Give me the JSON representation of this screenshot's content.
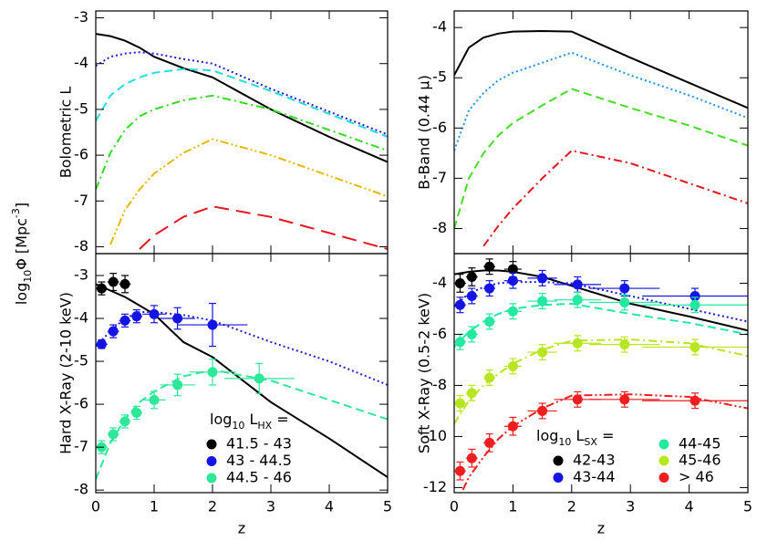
{
  "y_label": [
    {
      "text": "log"
    },
    {
      "text": "10",
      "shift": "sub"
    },
    {
      "text": "Φ  [Mpc"
    },
    {
      "text": "-3",
      "shift": "super"
    },
    {
      "text": "]"
    }
  ],
  "chart_data": [
    {
      "type": "line",
      "ylabel": "Bolometric L",
      "xlim": [
        0,
        5
      ],
      "xticks": [
        0,
        1,
        2,
        3,
        4,
        5
      ],
      "ylim": [
        -8.15,
        -2.85
      ],
      "yticks": [
        -3,
        -4,
        -5,
        -6,
        -7,
        -8
      ],
      "x": [
        0,
        0.25,
        0.5,
        0.75,
        1,
        1.5,
        2,
        3,
        4,
        5
      ],
      "series": [
        {
          "color": "#000000",
          "dash": "solid",
          "values": [
            -3.35,
            -3.4,
            -3.5,
            -3.65,
            -3.85,
            -4.1,
            -4.3,
            -5.0,
            -5.6,
            -6.15
          ]
        },
        {
          "color": "#1e1ee0",
          "dash": "dotted",
          "values": [
            -4.05,
            -3.85,
            -3.78,
            -3.75,
            -3.78,
            -3.9,
            -4.0,
            -4.55,
            -5.05,
            -5.55
          ]
        },
        {
          "color": "#22dde0",
          "dash": "dashed",
          "values": [
            -5.25,
            -4.7,
            -4.45,
            -4.3,
            -4.2,
            -4.12,
            -4.15,
            -4.6,
            -5.1,
            -5.6
          ]
        },
        {
          "color": "#33dd22",
          "dash": "dashdot",
          "values": [
            -6.75,
            -5.95,
            -5.45,
            -5.15,
            -5.0,
            -4.8,
            -4.7,
            -5.0,
            -5.45,
            -5.9
          ]
        },
        {
          "color": "#e6b800",
          "dash": "dashdotdot",
          "values": [
            null,
            -7.95,
            -7.2,
            -6.75,
            -6.4,
            -5.95,
            -5.65,
            -6.0,
            -6.45,
            -6.9
          ]
        },
        {
          "color": "#e6141e",
          "dash": "longdash",
          "values": [
            null,
            null,
            null,
            -8.05,
            -7.75,
            -7.35,
            -7.12,
            -7.35,
            -7.7,
            -8.05
          ]
        }
      ]
    },
    {
      "type": "line",
      "ylabel": "B-Band (0.44 μ)",
      "xlim": [
        0,
        5
      ],
      "xticks": [
        0,
        1,
        2,
        3,
        4,
        5
      ],
      "ylim": [
        -8.5,
        -3.67
      ],
      "yticks": [
        -4,
        -5,
        -6,
        -7,
        -8
      ],
      "x": [
        0,
        0.25,
        0.5,
        0.75,
        1,
        1.5,
        2,
        3,
        4,
        5
      ],
      "series": [
        {
          "color": "#000000",
          "dash": "solid",
          "values": [
            -4.95,
            -4.4,
            -4.2,
            -4.12,
            -4.08,
            -4.07,
            -4.08,
            -4.6,
            -5.1,
            -5.6
          ]
        },
        {
          "color": "#1e90ff",
          "dash": "dotted",
          "values": [
            -6.45,
            -5.65,
            -5.3,
            -5.05,
            -4.9,
            -4.7,
            -4.5,
            -4.95,
            -5.35,
            -5.8
          ]
        },
        {
          "color": "#44dd22",
          "dash": "dashed",
          "values": [
            -8.0,
            -7.0,
            -6.5,
            -6.15,
            -5.9,
            -5.55,
            -5.22,
            -5.6,
            -5.95,
            -6.35
          ]
        },
        {
          "color": "#e6141e",
          "dash": "dashdot",
          "values": [
            null,
            null,
            -8.35,
            -7.95,
            -7.6,
            -7.0,
            -6.45,
            -6.7,
            -7.1,
            -7.5
          ]
        }
      ]
    },
    {
      "type": "line",
      "ylabel": "Hard X-Ray (2-10 keV)",
      "xlabel": "z",
      "xlim": [
        0,
        5
      ],
      "xticks": [
        0,
        1,
        2,
        3,
        4,
        5
      ],
      "ylim": [
        -8.06,
        -2.49
      ],
      "yticks": [
        -3,
        -4,
        -5,
        -6,
        -7,
        -8
      ],
      "x": [
        0,
        0.25,
        0.5,
        0.75,
        1,
        1.5,
        2,
        3,
        4,
        5
      ],
      "series": [
        {
          "color": "#000000",
          "dash": "solid",
          "values": [
            -3.2,
            -3.35,
            -3.5,
            -3.7,
            -3.9,
            -4.55,
            -4.9,
            -5.95,
            -6.8,
            -7.7
          ]
        },
        {
          "color": "#1e1ee0",
          "dash": "dotted",
          "values": [
            -4.65,
            -4.3,
            -4.0,
            -3.85,
            -3.85,
            -3.92,
            -4.05,
            -4.55,
            -5.0,
            -5.55
          ]
        },
        {
          "color": "#2ee89a",
          "dash": "dashed",
          "values": [
            -7.75,
            -6.9,
            -6.35,
            -5.95,
            -5.7,
            -5.35,
            -5.2,
            -5.45,
            -5.9,
            -6.35
          ]
        }
      ],
      "legend_title": [
        {
          "text": "log"
        },
        {
          "text": "10",
          "shift": "sub"
        },
        {
          "text": " L"
        },
        {
          "text": "HX",
          "shift": "sub"
        },
        {
          "text": " ="
        }
      ],
      "legend_ncol": 1,
      "points": [
        {
          "name": "41.5 - 43",
          "color": "#000000",
          "x": [
            0.1,
            0.3,
            0.5
          ],
          "values": [
            -3.3,
            -3.15,
            -3.2
          ],
          "xerr": [
            0.1,
            0.1,
            0.1
          ],
          "yerr": [
            0.15,
            0.2,
            0.2
          ]
        },
        {
          "name": "43 - 44.5",
          "color": "#1414e6",
          "x": [
            0.1,
            0.3,
            0.5,
            0.7,
            1.0,
            1.4,
            2.0
          ],
          "values": [
            -4.6,
            -4.3,
            -4.05,
            -3.95,
            -3.9,
            -4.0,
            -4.15
          ],
          "xerr": [
            0.1,
            0.1,
            0.1,
            0.1,
            0.2,
            0.3,
            0.6
          ],
          "yerr": [
            0.1,
            0.15,
            0.15,
            0.15,
            0.2,
            0.25,
            0.5
          ]
        },
        {
          "name": "44.5 - 46",
          "color": "#2ee89a",
          "x": [
            0.1,
            0.3,
            0.5,
            0.7,
            1.0,
            1.4,
            2.0,
            2.8
          ],
          "values": [
            -7.0,
            -6.7,
            -6.4,
            -6.2,
            -5.9,
            -5.55,
            -5.25,
            -5.4
          ],
          "xerr": [
            0.1,
            0.1,
            0.1,
            0.1,
            0.2,
            0.3,
            0.4,
            0.6
          ],
          "yerr": [
            0.15,
            0.15,
            0.15,
            0.15,
            0.2,
            0.25,
            0.3,
            0.35
          ]
        }
      ]
    },
    {
      "type": "line",
      "ylabel": "Soft X-Ray (0.5-2 keV)",
      "xlabel": "z",
      "xlim": [
        0,
        5
      ],
      "xticks": [
        0,
        1,
        2,
        3,
        4,
        5
      ],
      "ylim": [
        -12.2,
        -2.84
      ],
      "yticks": [
        -4,
        -6,
        -8,
        -10,
        -12
      ],
      "x": [
        0,
        0.25,
        0.5,
        0.75,
        1,
        1.5,
        2,
        3,
        4,
        5
      ],
      "series": [
        {
          "color": "#000000",
          "dash": "solid",
          "values": [
            -3.65,
            -3.55,
            -3.5,
            -3.5,
            -3.55,
            -3.75,
            -4.1,
            -4.8,
            -5.3,
            -5.85
          ]
        },
        {
          "color": "#1414e6",
          "dash": "dotted",
          "values": [
            -4.9,
            -4.4,
            -4.15,
            -4.0,
            -3.95,
            -3.95,
            -4.0,
            -4.5,
            -5.0,
            -5.5
          ]
        },
        {
          "color": "#22e8a0",
          "dash": "dashed",
          "values": [
            -6.5,
            -5.9,
            -5.5,
            -5.2,
            -5.0,
            -4.85,
            -4.8,
            -5.2,
            -5.55,
            -6.0
          ]
        },
        {
          "color": "#b8e61e",
          "dash": "dashdot",
          "values": [
            -9.5,
            -8.6,
            -8.0,
            -7.55,
            -7.15,
            -6.6,
            -6.25,
            -6.2,
            -6.35,
            -6.85
          ]
        },
        {
          "color": "#f01e1e",
          "dash": "dashdotdot",
          "values": [
            -12.8,
            -11.6,
            -10.8,
            -10.1,
            -9.6,
            -8.9,
            -8.4,
            -8.35,
            -8.45,
            -8.9
          ]
        }
      ],
      "legend_title": [
        {
          "text": "log"
        },
        {
          "text": "10",
          "shift": "sub"
        },
        {
          "text": " L"
        },
        {
          "text": "SX",
          "shift": "sub"
        },
        {
          "text": " ="
        }
      ],
      "legend_ncol": 2,
      "points": [
        {
          "name": "42-43",
          "color": "#000000",
          "x": [
            0.1,
            0.3,
            0.6,
            1.0
          ],
          "values": [
            -4.0,
            -3.75,
            -3.35,
            -3.45
          ],
          "xerr": [
            0.1,
            0.1,
            0.1,
            0.15
          ],
          "yerr": [
            0.35,
            0.35,
            0.3,
            0.3
          ]
        },
        {
          "name": "43-44",
          "color": "#1414e6",
          "x": [
            0.1,
            0.3,
            0.6,
            1.0,
            1.5,
            2.1,
            2.9,
            4.1
          ],
          "values": [
            -4.85,
            -4.5,
            -4.2,
            -3.9,
            -3.8,
            -4.05,
            -4.2,
            -4.5
          ],
          "xerr": [
            0.1,
            0.1,
            0.1,
            0.15,
            0.25,
            0.4,
            0.6,
            0.9
          ],
          "yerr": [
            0.3,
            0.3,
            0.3,
            0.3,
            0.3,
            0.3,
            0.3,
            0.3
          ]
        },
        {
          "name": "44-45",
          "color": "#22e8a0",
          "x": [
            0.1,
            0.3,
            0.6,
            1.0,
            1.5,
            2.1,
            2.9,
            4.1
          ],
          "values": [
            -6.3,
            -6.0,
            -5.5,
            -5.1,
            -4.7,
            -4.65,
            -4.75,
            -4.85
          ],
          "xerr": [
            0.1,
            0.1,
            0.1,
            0.15,
            0.25,
            0.4,
            0.6,
            0.9
          ],
          "yerr": [
            0.3,
            0.3,
            0.3,
            0.3,
            0.3,
            0.3,
            0.3,
            0.3
          ]
        },
        {
          "name": "45-46",
          "color": "#b8e61e",
          "x": [
            0.1,
            0.3,
            0.6,
            1.0,
            1.5,
            2.1,
            2.9,
            4.1
          ],
          "values": [
            -8.7,
            -8.3,
            -7.7,
            -7.25,
            -6.7,
            -6.35,
            -6.4,
            -6.5
          ],
          "xerr": [
            0.1,
            0.1,
            0.1,
            0.15,
            0.25,
            0.4,
            0.6,
            0.9
          ],
          "yerr": [
            0.3,
            0.3,
            0.3,
            0.3,
            0.3,
            0.3,
            0.3,
            0.3
          ]
        },
        {
          "name": "> 46",
          "color": "#f01e1e",
          "x": [
            0.1,
            0.3,
            0.6,
            1.0,
            1.5,
            2.1,
            2.9,
            4.1
          ],
          "values": [
            -11.35,
            -10.85,
            -10.25,
            -9.6,
            -9.0,
            -8.55,
            -8.55,
            -8.6
          ],
          "xerr": [
            0.1,
            0.1,
            0.1,
            0.15,
            0.25,
            0.4,
            0.6,
            0.9
          ],
          "yerr": [
            0.35,
            0.35,
            0.35,
            0.35,
            0.3,
            0.3,
            0.3,
            0.3
          ]
        }
      ]
    }
  ]
}
